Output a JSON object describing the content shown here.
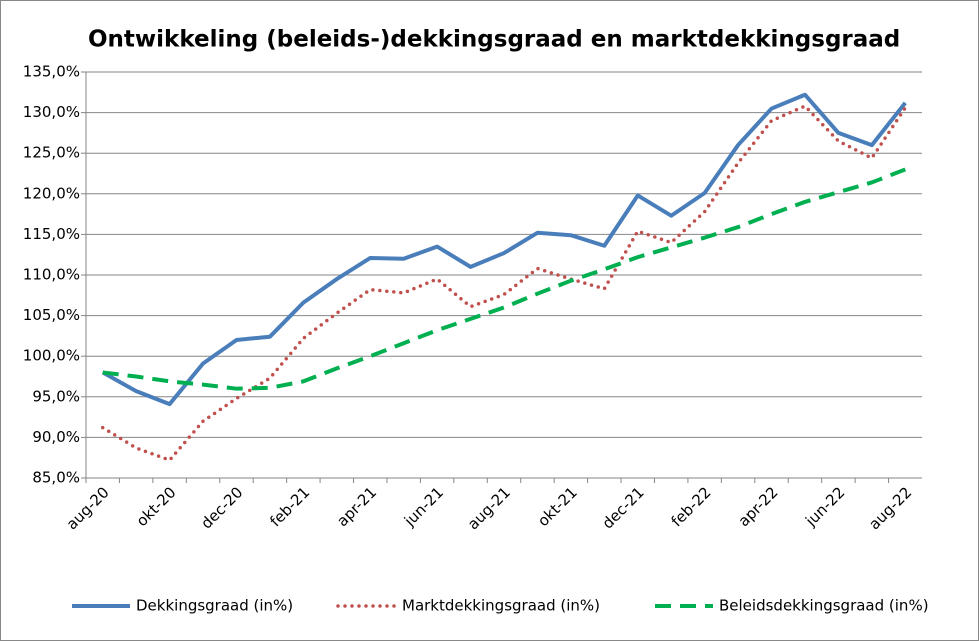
{
  "chart_data": {
    "type": "line",
    "title": "Ontwikkeling (beleids-)dekkingsgraad en marktdekkingsgraad",
    "categories": [
      "aug-20",
      null,
      "okt-20",
      null,
      "dec-20",
      null,
      "feb-21",
      null,
      "apr-21",
      null,
      "jun-21",
      null,
      "aug-21",
      null,
      "okt-21",
      null,
      "dec-21",
      null,
      "feb-22",
      null,
      "apr-22",
      null,
      "jun-22",
      null,
      "aug-22"
    ],
    "series": [
      {
        "name": "Dekkingsgraad (in%)",
        "color": "#4a7ebb",
        "style": "solid",
        "values": [
          98.0,
          95.7,
          94.1,
          99.1,
          102.0,
          102.4,
          106.6,
          109.5,
          112.1,
          112.0,
          113.5,
          111.0,
          112.7,
          115.2,
          114.9,
          113.6,
          119.8,
          117.3,
          120.1,
          126.0,
          130.5,
          132.2,
          127.5,
          126.0,
          131.2
        ]
      },
      {
        "name": "Marktdekkingsgraad (in%)",
        "color": "#c0504d",
        "style": "dotted",
        "values": [
          91.2,
          88.7,
          87.2,
          92.0,
          94.8,
          97.3,
          102.2,
          105.3,
          108.2,
          107.8,
          109.5,
          106.1,
          107.6,
          110.8,
          109.5,
          108.3,
          115.4,
          114.0,
          117.8,
          123.8,
          129.0,
          130.8,
          126.5,
          124.4,
          130.6
        ]
      },
      {
        "name": "Beleidsdekkingsgraad (in%)",
        "color": "#00b050",
        "style": "dashed",
        "values": [
          98.0,
          97.5,
          96.9,
          96.5,
          96.0,
          96.1,
          96.9,
          98.5,
          100.0,
          101.6,
          103.2,
          104.6,
          106.0,
          107.7,
          109.3,
          110.7,
          112.2,
          113.4,
          114.6,
          115.9,
          117.5,
          119.0,
          120.2,
          121.4,
          123.0
        ]
      }
    ],
    "ylim": [
      85,
      135
    ],
    "yticks": [
      {
        "value": 85,
        "label": "85,0%"
      },
      {
        "value": 90,
        "label": "90,0%"
      },
      {
        "value": 95,
        "label": "95,0%"
      },
      {
        "value": 100,
        "label": "100,0%"
      },
      {
        "value": 105,
        "label": "105,0%"
      },
      {
        "value": 110,
        "label": "110,0%"
      },
      {
        "value": 115,
        "label": "115,0%"
      },
      {
        "value": 120,
        "label": "120,0%"
      },
      {
        "value": 125,
        "label": "125,0%"
      },
      {
        "value": 130,
        "label": "130,0%"
      },
      {
        "value": 135,
        "label": "135,0%"
      }
    ],
    "grid": true,
    "legend": "bottom"
  }
}
